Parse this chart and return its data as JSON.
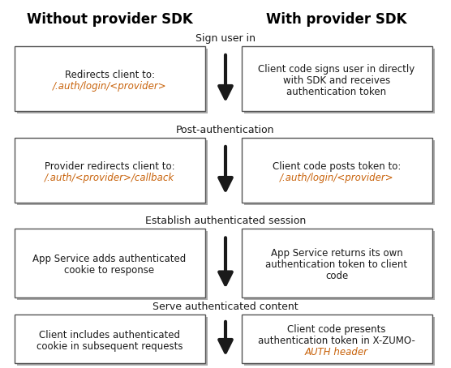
{
  "title_left": "Without provider SDK",
  "title_right": "With provider SDK",
  "section_labels": [
    "Sign user in",
    "Post-authentication",
    "Establish authenticated session",
    "Serve authenticated content"
  ],
  "left_boxes": [
    {
      "lines": [
        {
          "text": "Redirects client to:",
          "italic": false
        },
        {
          "text": "/.auth/login/<provider>",
          "italic": true
        }
      ]
    },
    {
      "lines": [
        {
          "text": "Provider redirects client to:",
          "italic": false
        },
        {
          "text": "/.auth/<provider>/callback",
          "italic": true
        }
      ]
    },
    {
      "lines": [
        {
          "text": "App Service adds authenticated",
          "italic": false
        },
        {
          "text": "cookie to response",
          "italic": false
        }
      ]
    },
    {
      "lines": [
        {
          "text": "Client includes authenticated",
          "italic": false
        },
        {
          "text": "cookie in subsequent requests",
          "italic": false
        }
      ]
    }
  ],
  "right_boxes": [
    {
      "lines": [
        {
          "text": "Client code signs user in directly",
          "italic": false
        },
        {
          "text": "with SDK and receives",
          "italic": false
        },
        {
          "text": "authentication token",
          "italic": false
        }
      ]
    },
    {
      "lines": [
        {
          "text": "Client code posts token to:",
          "italic": false
        },
        {
          "text": "/.auth/login/<provider>",
          "italic": true
        }
      ]
    },
    {
      "lines": [
        {
          "text": "App Service returns its own",
          "italic": false
        },
        {
          "text": "authentication token to client",
          "italic": false
        },
        {
          "text": "code",
          "italic": false
        }
      ]
    },
    {
      "lines": [
        {
          "text": "Client code presents",
          "italic": false
        },
        {
          "text": "authentication token in X-ZUMO-",
          "italic": false
        },
        {
          "text": "AUTH header",
          "italic": true
        }
      ]
    }
  ],
  "fig_width": 5.56,
  "fig_height": 4.54,
  "dpi": 100,
  "bg_color": "#ffffff",
  "box_facecolor": "#ffffff",
  "box_edgecolor": "#555555",
  "normal_text_color": "#1a1a1a",
  "italic_text_color": "#c8620a",
  "section_label_color": "#1a1a1a",
  "title_color": "#000000",
  "arrow_color": "#1a1a1a",
  "shadow_color": "#aaaaaa"
}
